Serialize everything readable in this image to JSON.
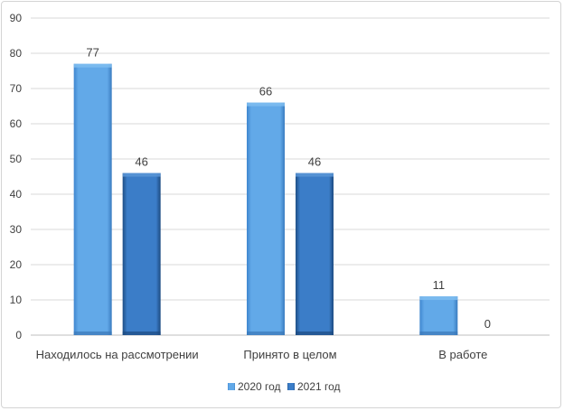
{
  "chart_data": {
    "type": "bar",
    "title": "",
    "xlabel": "",
    "ylabel": "",
    "ylim": [
      0,
      90
    ],
    "yticks": [
      0,
      10,
      20,
      30,
      40,
      50,
      60,
      70,
      80,
      90
    ],
    "grid": true,
    "legend_position": "bottom",
    "categories": [
      "Находилось на рассмотрении",
      "Принято в целом",
      "В работе"
    ],
    "series": [
      {
        "name": "2020 год",
        "values": [
          77,
          66,
          11
        ],
        "color": "#5ea6e5"
      },
      {
        "name": "2021 год",
        "values": [
          46,
          46,
          0
        ],
        "color": "#3a7dc9"
      }
    ]
  }
}
